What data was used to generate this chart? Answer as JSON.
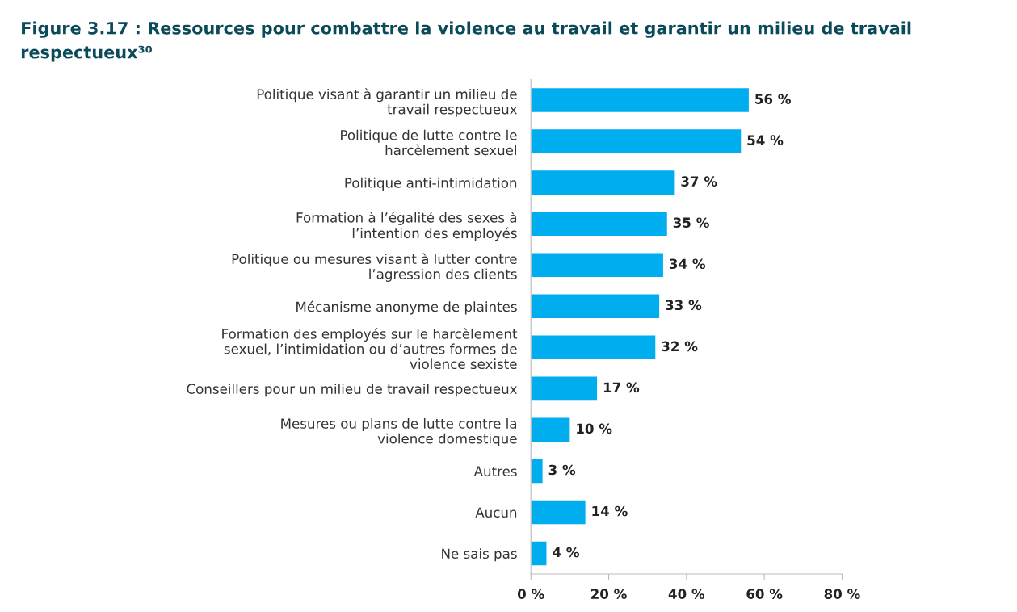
{
  "chart_data": {
    "type": "bar",
    "orientation": "horizontal",
    "title": "Figure 3.17 : Ressources pour combattre la violence au travail et garantir un milieu de travail respectueux³⁰",
    "categories": [
      "Politique visant à garantir un milieu de\ntravail respectueux",
      "Politique de lutte contre le\nharcèlement sexuel",
      "Politique anti-intimidation",
      "Formation à l’égalité des sexes à\nl’intention des employés",
      "Politique ou mesures visant à lutter contre\nl’agression des clients",
      "Mécanisme anonyme de plaintes",
      "Formation des employés sur le harcèlement\nsexuel, l’intimidation ou d’autres formes de\nviolence sexiste",
      "Conseillers pour un milieu de travail respectueux",
      "Mesures ou plans de lutte contre la\nviolence domestique",
      "Autres",
      "Aucun",
      "Ne sais pas"
    ],
    "values": [
      56,
      54,
      37,
      35,
      34,
      33,
      32,
      17,
      10,
      3,
      14,
      4
    ],
    "value_labels": [
      "56 %",
      "54 %",
      "37 %",
      "35 %",
      "34 %",
      "33 %",
      "32 %",
      "17 %",
      "10 %",
      "3 %",
      "14 %",
      "4 %"
    ],
    "color": "#00adef",
    "xlim": [
      0,
      80
    ],
    "xticks": [
      {
        "value": 0,
        "label": "0 %"
      },
      {
        "value": 20,
        "label": "20 %"
      },
      {
        "value": 40,
        "label": "40 %"
      },
      {
        "value": 60,
        "label": "60 %"
      },
      {
        "value": 80,
        "label": "80 %"
      }
    ],
    "grid": false,
    "legend": false
  }
}
